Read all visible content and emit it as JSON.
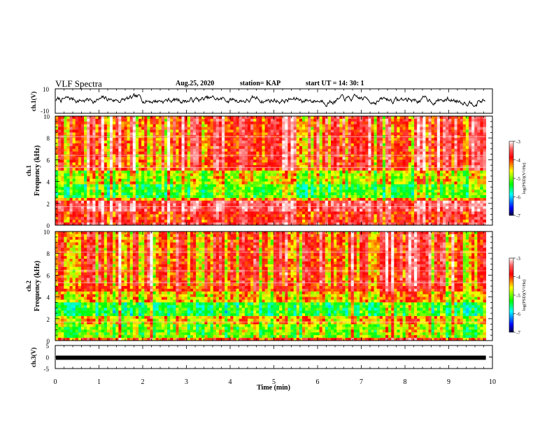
{
  "header": {
    "title": "VLF Spectra",
    "date": "Aug.25, 2020",
    "station": "station= KAP",
    "start": "start  UT  =   14: 30: 1"
  },
  "chart_data": [
    {
      "type": "line",
      "panel": "ch1-waveform",
      "ylabel": "ch.1(V)",
      "ylim": [
        -10,
        10
      ],
      "yticks": [
        "10",
        "-10"
      ],
      "xlim": [
        0,
        10
      ],
      "data_end_min": 9.85,
      "description_values": "noisy voltage trace roughly between -4 and 6 V"
    },
    {
      "type": "heatmap",
      "panel": "ch1-spectrogram",
      "ylabel": "ch.1\nFrequency  (kHz)",
      "ylim": [
        0,
        10
      ],
      "yticks": [
        "0",
        "2",
        "4",
        "6",
        "8",
        "10"
      ],
      "xlim": [
        0,
        10
      ],
      "data_end_min": 9.85,
      "colorbar": {
        "label": "log(PSD)(V²/Hz)",
        "range": [
          -7,
          -3
        ],
        "ticks": [
          "-3",
          "-4",
          "-5",
          "-6",
          "-7"
        ]
      }
    },
    {
      "type": "heatmap",
      "panel": "ch2-spectrogram",
      "ylabel": "ch.2\nFrequency  (kHz)",
      "ylim": [
        0,
        10
      ],
      "yticks": [
        "0",
        "2",
        "4",
        "6",
        "8",
        "10"
      ],
      "xlim": [
        0,
        10
      ],
      "data_end_min": 9.85,
      "colorbar": {
        "label": "log(PSD)(V²/Hz)",
        "range": [
          -7,
          -3
        ],
        "ticks": [
          "-3",
          "-4",
          "-5",
          "-6",
          "-7"
        ]
      }
    },
    {
      "type": "line",
      "panel": "ch3-waveform",
      "ylabel": "ch.3(V)",
      "ylim": [
        -5,
        5
      ],
      "yticks": [
        "5",
        "0",
        "-5"
      ],
      "xlim": [
        0,
        10
      ],
      "data_end_min": 9.85,
      "level": -0.3
    }
  ],
  "xaxis": {
    "label": "Time  (min)",
    "ticks": [
      "0",
      "1",
      "2",
      "3",
      "4",
      "5",
      "6",
      "7",
      "8",
      "9",
      "10"
    ]
  },
  "colors": {
    "trace": "#000000",
    "axis": "#000000"
  }
}
